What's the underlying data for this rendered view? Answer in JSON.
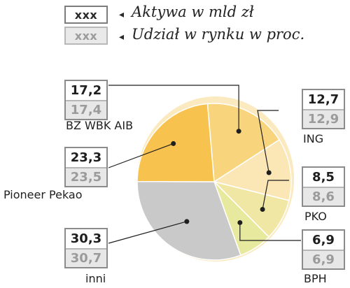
{
  "legend": {
    "top_box": "xxx",
    "bottom_box": "xxx",
    "arrow_glyph": "◂",
    "top_label": "Aktywa w mld zł",
    "bottom_label": "Udział w rynku w proc."
  },
  "chart_data": {
    "type": "pie",
    "series": [
      {
        "name": "Aktywa w mld zł",
        "values": [
          17.2,
          12.7,
          8.5,
          6.9,
          30.3,
          23.3
        ]
      },
      {
        "name": "Udział w rynku w proc.",
        "values": [
          17.4,
          12.9,
          8.6,
          6.9,
          30.7,
          23.5
        ]
      }
    ],
    "categories": [
      "BZ WBK AIB",
      "ING",
      "PKO",
      "BPH",
      "inni",
      "Pioneer Pekao"
    ],
    "slices": [
      {
        "label": "BZ WBK AIB",
        "assets": "17,2",
        "share": "17,4",
        "color": "#f8d57d"
      },
      {
        "label": "ING",
        "assets": "12,7",
        "share": "12,9",
        "color": "#fbe6b5"
      },
      {
        "label": "PKO",
        "assets": "8,5",
        "share": "8,6",
        "color": "#f1e7a4"
      },
      {
        "label": "BPH",
        "assets": "6,9",
        "share": "6,9",
        "color": "#e7ea9e"
      },
      {
        "label": "inni",
        "assets": "30,3",
        "share": "30,7",
        "color": "#c9c9c9"
      },
      {
        "label": "Pioneer Pekao",
        "assets": "23,3",
        "share": "23,5",
        "color": "#f8c24e"
      }
    ],
    "colors": {
      "rim_top": "#fbe9bf",
      "box_border": "#8b8b8b",
      "leader": "#1f1f1f"
    }
  }
}
